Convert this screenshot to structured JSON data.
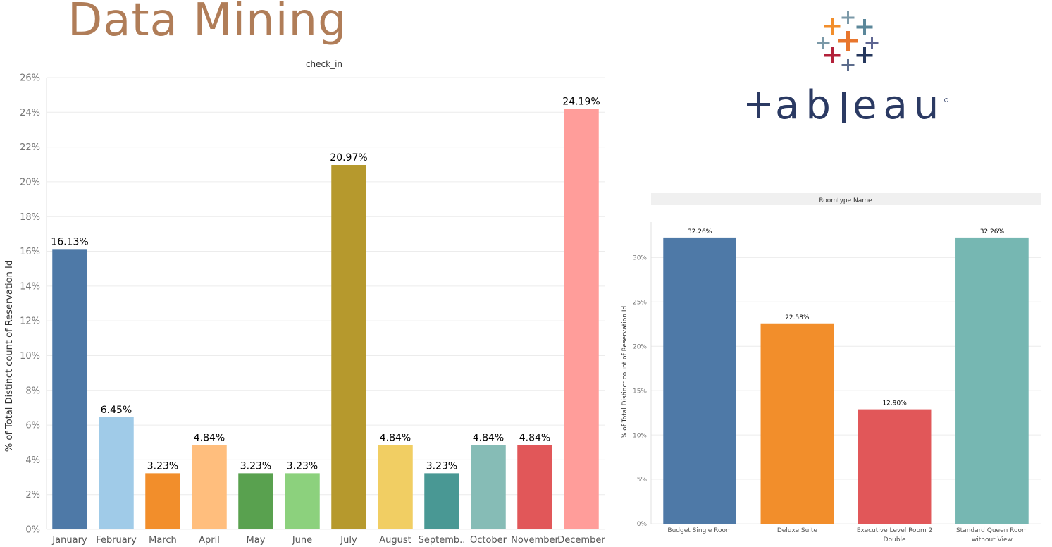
{
  "page": {
    "title": "Data Mining"
  },
  "logo": {
    "wordmark": "+ableau",
    "name": "tableau-logo"
  },
  "chart_data": [
    {
      "type": "bar",
      "header": "check_in",
      "xlabel": "",
      "ylabel": "% of Total Distinct count of Reservation Id",
      "categories": [
        "January",
        "February",
        "March",
        "April",
        "May",
        "June",
        "July",
        "August",
        "Septemb..",
        "October",
        "November",
        "December"
      ],
      "values": [
        16.13,
        6.45,
        3.23,
        4.84,
        3.23,
        3.23,
        20.97,
        4.84,
        3.23,
        4.84,
        4.84,
        24.19
      ],
      "value_labels": [
        "16.13%",
        "6.45%",
        "3.23%",
        "4.84%",
        "3.23%",
        "3.23%",
        "20.97%",
        "4.84%",
        "3.23%",
        "4.84%",
        "4.84%",
        "24.19%"
      ],
      "colors": [
        "#4e79a7",
        "#a0cbe8",
        "#f28e2b",
        "#ffbe7d",
        "#59a14f",
        "#8cd17d",
        "#b6992d",
        "#f1ce63",
        "#499894",
        "#86bcb6",
        "#e15759",
        "#ff9d9a"
      ],
      "yticks": [
        0,
        2,
        4,
        6,
        8,
        10,
        12,
        14,
        16,
        18,
        20,
        22,
        24,
        26
      ],
      "ytick_labels": [
        "0%",
        "2%",
        "4%",
        "6%",
        "8%",
        "10%",
        "12%",
        "14%",
        "16%",
        "18%",
        "20%",
        "22%",
        "24%",
        "26%"
      ],
      "ylim": [
        0,
        26
      ],
      "grid": true
    },
    {
      "type": "bar",
      "header": "Roomtype Name",
      "xlabel": "",
      "ylabel": "% of Total Distinct count of Reservation Id",
      "categories": [
        [
          "Budget Single Room"
        ],
        [
          "Deluxe Suite"
        ],
        [
          "Executive Level Room 2",
          "Double"
        ],
        [
          "Standard Queen Room",
          "without View"
        ]
      ],
      "values": [
        32.26,
        22.58,
        12.9,
        32.26
      ],
      "value_labels": [
        "32.26%",
        "22.58%",
        "12.90%",
        "32.26%"
      ],
      "colors": [
        "#4e79a7",
        "#f28e2b",
        "#e15759",
        "#76b7b2"
      ],
      "yticks": [
        0,
        5,
        10,
        15,
        20,
        25,
        30
      ],
      "ytick_labels": [
        "0%",
        "5%",
        "10%",
        "15%",
        "20%",
        "25%",
        "30%"
      ],
      "ylim": [
        0,
        34
      ],
      "grid": true
    }
  ]
}
